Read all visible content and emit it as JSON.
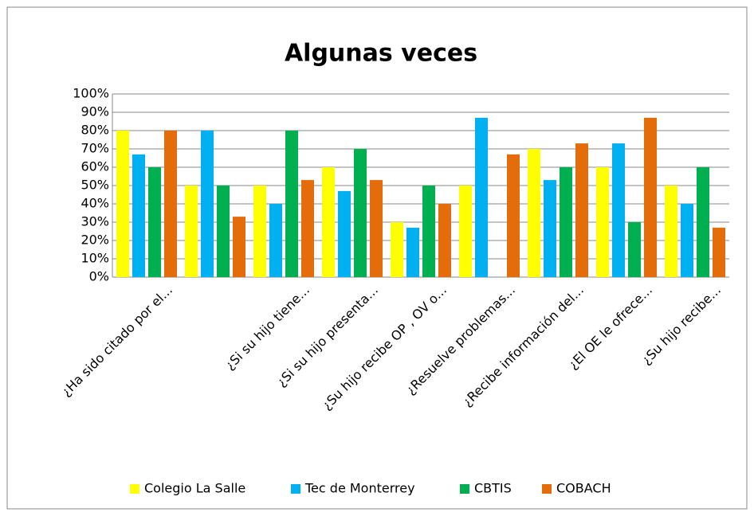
{
  "chart_data": {
    "type": "bar",
    "title": "Algunas veces",
    "categories": [
      "¿Ha sido citado por el...",
      null,
      "¿Si su hijo tiene...",
      "¿Si su hijo presenta...",
      "¿Su hijo recibe OP , OV o...",
      "¿Resuelve problemas...",
      "¿Recibe información del...",
      "¿El OE le ofrece...",
      "¿Su hijo recibe..."
    ],
    "series": [
      {
        "name": "Colegio La Salle",
        "color": "#ffff00",
        "values": [
          80,
          50,
          50,
          60,
          30,
          50,
          70,
          60,
          50
        ]
      },
      {
        "name": "Tec de Monterrey",
        "color": "#00b0f0",
        "values": [
          67,
          80,
          40,
          47,
          27,
          87,
          53,
          73,
          40
        ]
      },
      {
        "name": "CBTIS",
        "color": "#00b050",
        "values": [
          60,
          50,
          80,
          70,
          50,
          0,
          60,
          30,
          60
        ]
      },
      {
        "name": "COBACH",
        "color": "#e46c0a",
        "values": [
          80,
          33,
          53,
          53,
          40,
          67,
          73,
          87,
          27
        ]
      }
    ],
    "ylim": [
      0,
      100
    ],
    "yticks": [
      {
        "value": 0,
        "label": "0%"
      },
      {
        "value": 10,
        "label": "10%"
      },
      {
        "value": 20,
        "label": "20%"
      },
      {
        "value": 30,
        "label": "30%"
      },
      {
        "value": 40,
        "label": "40%"
      },
      {
        "value": 50,
        "label": "50%"
      },
      {
        "value": 60,
        "label": "60%"
      },
      {
        "value": 70,
        "label": "70%"
      },
      {
        "value": 80,
        "label": "80%"
      },
      {
        "value": 90,
        "label": "90%"
      },
      {
        "value": 100,
        "label": "100%"
      }
    ],
    "grid": true,
    "legend": "bottom"
  }
}
